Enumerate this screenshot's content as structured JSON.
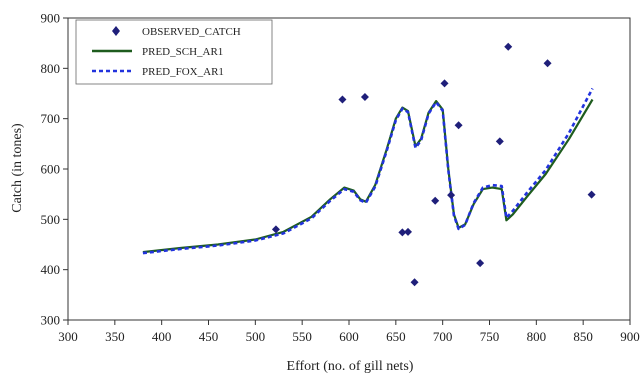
{
  "chart_data": {
    "type": "scatter",
    "title": "",
    "xlabel": "Effort (no. of gill nets)",
    "ylabel": "Catch (in tones)",
    "xlim": [
      300,
      900
    ],
    "ylim": [
      300,
      900
    ],
    "xticks": [
      300,
      350,
      400,
      450,
      500,
      550,
      600,
      650,
      700,
      750,
      800,
      850,
      900
    ],
    "yticks": [
      300,
      400,
      500,
      600,
      700,
      800,
      900
    ],
    "grid": false,
    "legend_position": "top-left",
    "series": [
      {
        "name": "OBSERVED_CATCH",
        "kind": "markers",
        "color": "#1f1f7a",
        "points": [
          [
            522,
            480
          ],
          [
            593,
            738
          ],
          [
            617,
            743
          ],
          [
            657,
            474
          ],
          [
            663,
            475
          ],
          [
            670,
            375
          ],
          [
            692,
            537
          ],
          [
            702,
            770
          ],
          [
            709,
            548
          ],
          [
            717,
            687
          ],
          [
            740,
            413
          ],
          [
            761,
            655
          ],
          [
            770,
            843
          ],
          [
            812,
            810
          ],
          [
            859,
            549
          ]
        ]
      },
      {
        "name": "PRED_SCH_AR1",
        "kind": "solid-line",
        "color": "#1e5c1e",
        "points": [
          [
            380,
            435
          ],
          [
            420,
            443
          ],
          [
            460,
            450
          ],
          [
            500,
            460
          ],
          [
            530,
            475
          ],
          [
            560,
            505
          ],
          [
            580,
            540
          ],
          [
            595,
            563
          ],
          [
            605,
            557
          ],
          [
            612,
            540
          ],
          [
            618,
            535
          ],
          [
            628,
            568
          ],
          [
            640,
            638
          ],
          [
            650,
            700
          ],
          [
            657,
            722
          ],
          [
            663,
            715
          ],
          [
            671,
            645
          ],
          [
            677,
            660
          ],
          [
            685,
            712
          ],
          [
            693,
            735
          ],
          [
            700,
            718
          ],
          [
            706,
            600
          ],
          [
            712,
            510
          ],
          [
            717,
            483
          ],
          [
            724,
            490
          ],
          [
            733,
            530
          ],
          [
            743,
            560
          ],
          [
            753,
            563
          ],
          [
            763,
            560
          ],
          [
            768,
            498
          ],
          [
            775,
            510
          ],
          [
            790,
            545
          ],
          [
            810,
            590
          ],
          [
            835,
            660
          ],
          [
            860,
            738
          ]
        ]
      },
      {
        "name": "PRED_FOX_AR1",
        "kind": "dashed-line",
        "color": "#2233dd",
        "points": [
          [
            380,
            433
          ],
          [
            420,
            441
          ],
          [
            460,
            448
          ],
          [
            500,
            458
          ],
          [
            530,
            472
          ],
          [
            560,
            502
          ],
          [
            580,
            537
          ],
          [
            595,
            560
          ],
          [
            605,
            555
          ],
          [
            612,
            538
          ],
          [
            618,
            533
          ],
          [
            628,
            565
          ],
          [
            640,
            635
          ],
          [
            650,
            697
          ],
          [
            657,
            720
          ],
          [
            663,
            713
          ],
          [
            671,
            642
          ],
          [
            677,
            657
          ],
          [
            685,
            710
          ],
          [
            693,
            733
          ],
          [
            700,
            716
          ],
          [
            706,
            598
          ],
          [
            712,
            508
          ],
          [
            717,
            481
          ],
          [
            724,
            489
          ],
          [
            733,
            532
          ],
          [
            743,
            563
          ],
          [
            753,
            568
          ],
          [
            763,
            566
          ],
          [
            768,
            503
          ],
          [
            775,
            517
          ],
          [
            790,
            553
          ],
          [
            810,
            598
          ],
          [
            835,
            672
          ],
          [
            860,
            760
          ]
        ]
      }
    ]
  }
}
